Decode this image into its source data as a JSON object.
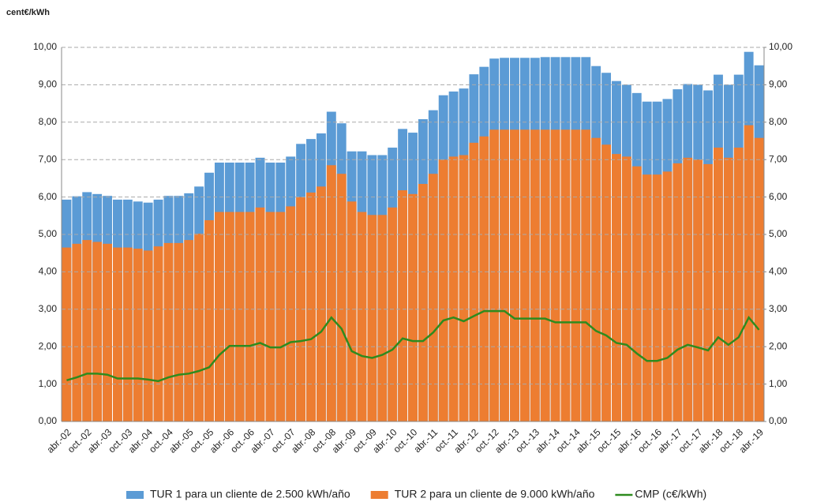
{
  "chart_data": {
    "type": "bar",
    "y_axis_label": "cent€/kWh",
    "categories": [
      "abr.-02",
      null,
      "oct.-02",
      null,
      "abr.-03",
      null,
      "oct.-03",
      null,
      "abr.-04",
      null,
      "oct.-04",
      null,
      "abr.-05",
      null,
      "oct.-05",
      null,
      "abr.-06",
      null,
      "oct.-06",
      null,
      "abr.-07",
      null,
      "oct.-07",
      null,
      "abr.-08",
      null,
      "oct.-08",
      null,
      "abr.-09",
      null,
      "oct.-09",
      null,
      "abr.-10",
      null,
      "oct.-10",
      null,
      "abr.-11",
      null,
      "oct.-11",
      null,
      "abr.-12",
      null,
      "oct.-12",
      null,
      "abr.-13",
      null,
      "oct.-13",
      null,
      "abr.-14",
      null,
      "oct.-14",
      null,
      "abr.-15",
      null,
      "oct.-15",
      null,
      "abr.-16",
      null,
      "oct.-16",
      null,
      "abr.-17",
      null,
      "oct.-17",
      null,
      "abr.-18",
      null,
      "oct.-18",
      null,
      "abr.-19"
    ],
    "series": [
      {
        "name": "TUR 1 para un cliente de 2.500 kWh/año",
        "type": "bar",
        "color": "#5b9bd5",
        "values": [
          5.93,
          6.02,
          6.13,
          6.08,
          6.03,
          5.93,
          5.93,
          5.88,
          5.85,
          5.93,
          6.03,
          6.03,
          6.1,
          6.28,
          6.65,
          6.92,
          6.92,
          6.92,
          6.92,
          7.05,
          6.92,
          6.92,
          7.08,
          7.42,
          7.55,
          7.7,
          8.28,
          7.97,
          7.22,
          7.22,
          7.12,
          7.12,
          7.32,
          7.82,
          7.72,
          8.08,
          8.32,
          8.72,
          8.82,
          8.9,
          9.28,
          9.48,
          9.7,
          9.72,
          9.72,
          9.72,
          9.72,
          9.74,
          9.74,
          9.74,
          9.74,
          9.74,
          9.5,
          9.32,
          9.1,
          9.0,
          8.78,
          8.55,
          8.55,
          8.62,
          8.88,
          9.02,
          9.0,
          8.85,
          9.27,
          9.0,
          9.27,
          9.88,
          9.52
        ]
      },
      {
        "name": "TUR 2 para un cliente de 9.000 kWh/año",
        "type": "bar",
        "color": "#ed7d31",
        "values": [
          4.65,
          4.75,
          4.85,
          4.8,
          4.75,
          4.65,
          4.65,
          4.62,
          4.57,
          4.68,
          4.77,
          4.77,
          4.85,
          5.02,
          5.38,
          5.6,
          5.6,
          5.6,
          5.6,
          5.72,
          5.6,
          5.6,
          5.75,
          6.0,
          6.12,
          6.28,
          6.85,
          6.62,
          5.88,
          5.6,
          5.52,
          5.52,
          5.72,
          6.18,
          6.08,
          6.35,
          6.62,
          7.0,
          7.08,
          7.12,
          7.45,
          7.62,
          7.8,
          7.8,
          7.8,
          7.8,
          7.8,
          7.8,
          7.8,
          7.8,
          7.8,
          7.8,
          7.58,
          7.4,
          7.15,
          7.08,
          6.82,
          6.6,
          6.6,
          6.68,
          6.9,
          7.05,
          7.0,
          6.88,
          7.32,
          7.05,
          7.32,
          7.92,
          7.58
        ]
      },
      {
        "name": "CMP (c€/kWh)",
        "type": "line",
        "color": "#2e8b1e",
        "values": [
          1.1,
          1.18,
          1.28,
          1.28,
          1.25,
          1.15,
          1.15,
          1.15,
          1.12,
          1.08,
          1.18,
          1.25,
          1.28,
          1.35,
          1.45,
          1.78,
          2.02,
          2.02,
          2.02,
          2.1,
          1.98,
          1.98,
          2.12,
          2.15,
          2.2,
          2.4,
          2.78,
          2.48,
          1.88,
          1.75,
          1.7,
          1.78,
          1.92,
          2.22,
          2.15,
          2.15,
          2.38,
          2.7,
          2.78,
          2.68,
          2.82,
          2.95,
          2.95,
          2.95,
          2.75,
          2.75,
          2.75,
          2.75,
          2.65,
          2.65,
          2.65,
          2.65,
          2.42,
          2.3,
          2.1,
          2.05,
          1.82,
          1.62,
          1.62,
          1.7,
          1.92,
          2.05,
          1.98,
          1.9,
          2.25,
          2.05,
          2.25,
          2.78,
          2.45
        ]
      }
    ],
    "ylim": [
      0,
      10
    ],
    "yticks": [
      {
        "value": 0,
        "label": "0,00"
      },
      {
        "value": 1,
        "label": "1,00"
      },
      {
        "value": 2,
        "label": "2,00"
      },
      {
        "value": 3,
        "label": "3,00"
      },
      {
        "value": 4,
        "label": "4,00"
      },
      {
        "value": 5,
        "label": "5,00"
      },
      {
        "value": 6,
        "label": "6,00"
      },
      {
        "value": 7,
        "label": "7,00"
      },
      {
        "value": 8,
        "label": "8,00"
      },
      {
        "value": 9,
        "label": "9,00"
      },
      {
        "value": 10,
        "label": "10,00"
      }
    ],
    "y2lim": [
      0,
      10
    ],
    "y2ticks": [
      {
        "value": 0,
        "label": "0,00"
      },
      {
        "value": 1,
        "label": "1,00"
      },
      {
        "value": 2,
        "label": "2,00"
      },
      {
        "value": 3,
        "label": "3,00"
      },
      {
        "value": 4,
        "label": "4,00"
      },
      {
        "value": 5,
        "label": "5,00"
      },
      {
        "value": 6,
        "label": "6,00"
      },
      {
        "value": 7,
        "label": "7,00"
      },
      {
        "value": 8,
        "label": "8,00"
      },
      {
        "value": 9,
        "label": "9,00"
      },
      {
        "value": 10,
        "label": "10,00"
      }
    ],
    "grid": true,
    "legend": "bottom"
  }
}
